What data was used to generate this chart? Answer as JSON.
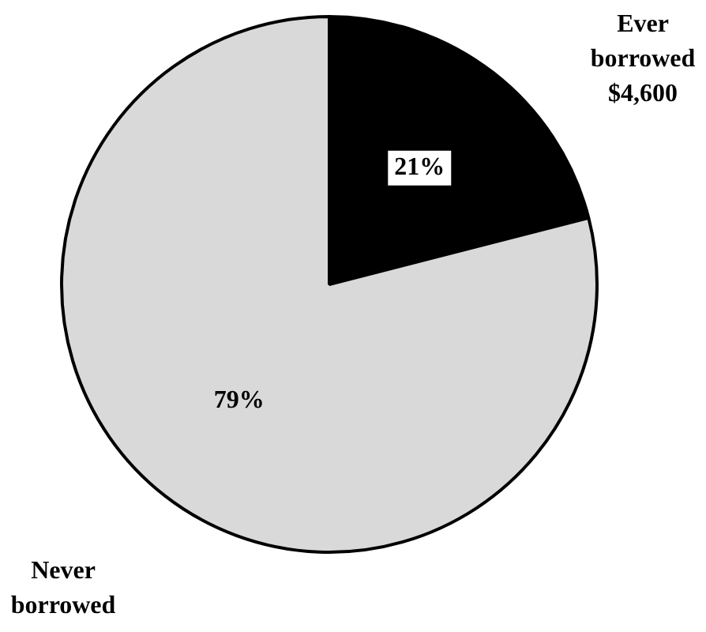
{
  "chart_data": {
    "type": "pie",
    "categories": [
      "Ever borrowed",
      "Never borrowed"
    ],
    "values": [
      21,
      79
    ],
    "colors": [
      "#000000",
      "#d9d9d9"
    ],
    "value_labels": [
      "21%",
      "79%"
    ],
    "annotations": [
      "$4,600"
    ],
    "legend": false
  }
}
